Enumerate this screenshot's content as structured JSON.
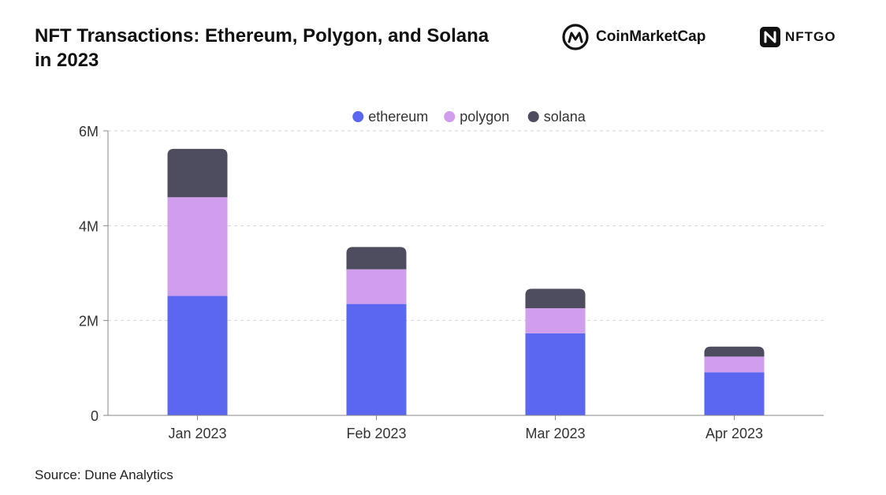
{
  "title": "NFT Transactions: Ethereum, Polygon, and Solana in 2023",
  "logos": {
    "coinmarketcap": "CoinMarketCap",
    "nftgo": "NFTGO"
  },
  "source": "Source: Dune Analytics",
  "chart_data": {
    "type": "bar",
    "stacked": true,
    "categories": [
      "Jan 2023",
      "Feb 2023",
      "Mar 2023",
      "Apr 2023"
    ],
    "series": [
      {
        "name": "ethereum",
        "color": "#5b67f1",
        "values": [
          2520000,
          2350000,
          1730000,
          910000
        ]
      },
      {
        "name": "polygon",
        "color": "#d19eed",
        "values": [
          2080000,
          730000,
          530000,
          330000
        ]
      },
      {
        "name": "solana",
        "color": "#4e4c5f",
        "values": [
          1020000,
          470000,
          410000,
          210000
        ]
      }
    ],
    "ylim": [
      0,
      6000000
    ],
    "yticks": [
      0,
      2000000,
      4000000,
      6000000
    ],
    "ytick_labels": [
      "0",
      "2M",
      "4M",
      "6M"
    ],
    "xlabel": "",
    "ylabel": "",
    "grid": true,
    "legend_position": "top-center"
  }
}
